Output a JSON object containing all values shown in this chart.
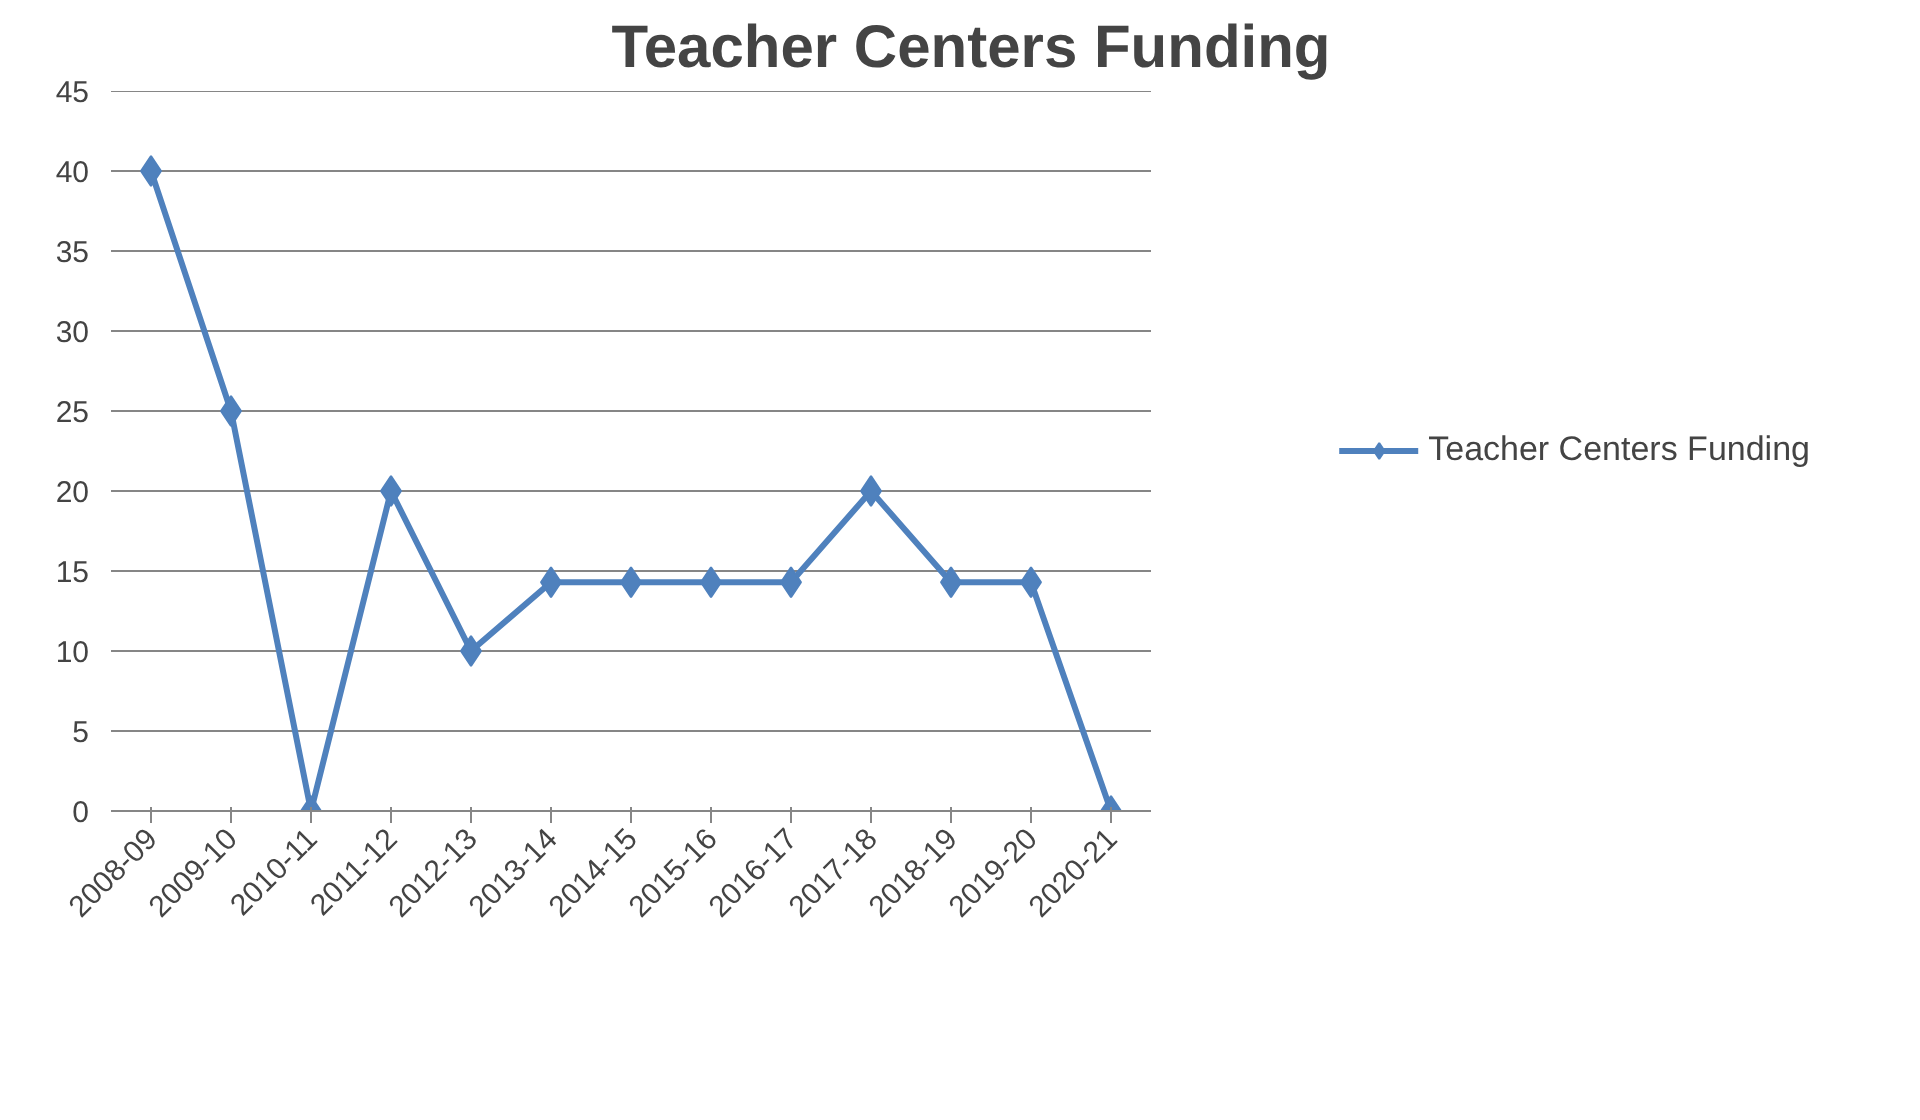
{
  "chart_data": {
    "type": "line",
    "title": "Teacher Centers Funding",
    "categories": [
      "2008-09",
      "2009-10",
      "2010-11",
      "2011-12",
      "2012-13",
      "2013-14",
      "2014-15",
      "2015-16",
      "2016-17",
      "2017-18",
      "2018-19",
      "2019-20",
      "2020-21"
    ],
    "series": [
      {
        "name": "Teacher Centers Funding",
        "color": "#4f81bd",
        "values": [
          40,
          25,
          0,
          20,
          10,
          14.3,
          14.3,
          14.3,
          14.3,
          20,
          14.3,
          14.3,
          0
        ]
      }
    ],
    "ylim": [
      0,
      45
    ],
    "yticks": [
      0,
      5,
      10,
      15,
      20,
      25,
      30,
      35,
      40,
      45
    ],
    "grid": "y",
    "legend": "right",
    "marker": "diamond",
    "line_style": "solid"
  }
}
